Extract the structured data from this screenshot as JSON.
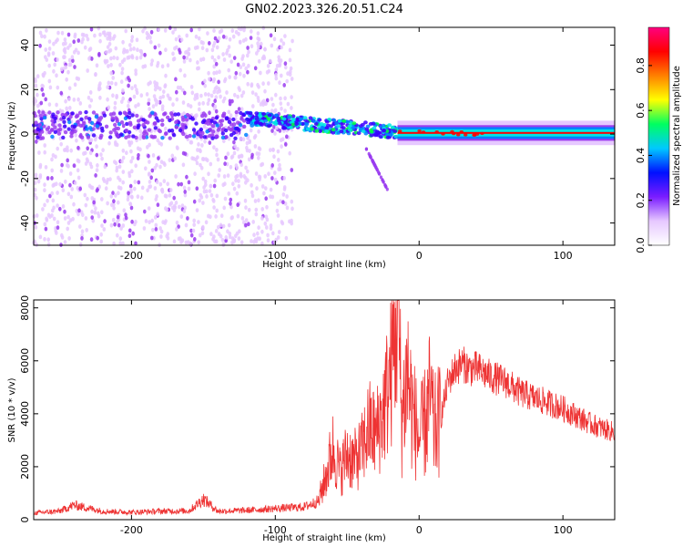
{
  "chart_data": [
    {
      "type": "heatmap",
      "title": "GN02.2023.326.20.51.C24",
      "xlabel": "Height of straight line (km)",
      "ylabel": "Frequency (Hz)",
      "xlim": [
        -268,
        136
      ],
      "ylim": [
        -50,
        48
      ],
      "xticks": [
        -200,
        -100,
        0,
        100
      ],
      "yticks": [
        -40,
        -20,
        0,
        20,
        40
      ],
      "colorbar": {
        "label": "Normalized spectral amplitude",
        "range": [
          0,
          0.97
        ],
        "ticks": [
          "0.0",
          "0.2",
          "0.4",
          "0.6",
          "0.8"
        ],
        "colormap": [
          "#ffffff",
          "#e6c8ff",
          "#9a3cf0",
          "#3c00ff",
          "#0080ff",
          "#00e5e5",
          "#00ff40",
          "#ffff00",
          "#ff8000",
          "#ff0000",
          "#ff0080"
        ]
      },
      "features": [
        {
          "name": "scattered_noise",
          "x_range": [
            -268,
            -88
          ],
          "freq_range": [
            -50,
            48
          ],
          "amplitude": 0.1
        },
        {
          "name": "low_freq_band",
          "x_range": [
            -268,
            -120
          ],
          "freq_range": [
            -2,
            10
          ],
          "amplitude": 0.25
        },
        {
          "name": "descending_signal",
          "x_range": [
            -120,
            -15
          ],
          "freq_start": 7,
          "freq_end": 1,
          "amplitude": 0.4
        },
        {
          "name": "dispersive_tail",
          "x_range": [
            -38,
            -22
          ],
          "freq_start": -5,
          "freq_end": -25,
          "amplitude": 0.2
        },
        {
          "name": "steady_line",
          "x_range": [
            -15,
            136
          ],
          "freq": 0.5,
          "amplitude": 0.85
        }
      ]
    },
    {
      "type": "line",
      "xlabel": "Height of straight line (km)",
      "ylabel": "SNR (10 * v/v)",
      "xlim": [
        -268,
        136
      ],
      "ylim": [
        0,
        8300
      ],
      "xticks": [
        -200,
        -100,
        0,
        100
      ],
      "yticks": [
        0,
        2000,
        4000,
        6000,
        8000
      ],
      "line_color": "#ee3333",
      "series": [
        {
          "x": [
            -268,
            -250,
            -240,
            -220,
            -200,
            -180,
            -160,
            -150,
            -140,
            -120,
            -100,
            -80,
            -70,
            -65,
            -60,
            -55,
            -50,
            -45,
            -40,
            -35,
            -30,
            -25,
            -20,
            -17,
            -15,
            -12,
            -10,
            -8,
            -5,
            0,
            5,
            8,
            10,
            15,
            20,
            25,
            30,
            35,
            40,
            50,
            60,
            70,
            80,
            90,
            100,
            110,
            120,
            130,
            136
          ],
          "values": [
            250,
            320,
            550,
            320,
            280,
            320,
            330,
            780,
            320,
            350,
            420,
            480,
            700,
            1600,
            2700,
            1800,
            2500,
            2200,
            2600,
            3500,
            3200,
            4100,
            5400,
            6900,
            8200,
            3800,
            4800,
            5600,
            4200,
            3000,
            3800,
            4700,
            3400,
            3800,
            5200,
            5700,
            5900,
            5700,
            5700,
            5400,
            5200,
            4800,
            4600,
            4400,
            4200,
            3900,
            3600,
            3400,
            3300
          ]
        }
      ]
    }
  ]
}
